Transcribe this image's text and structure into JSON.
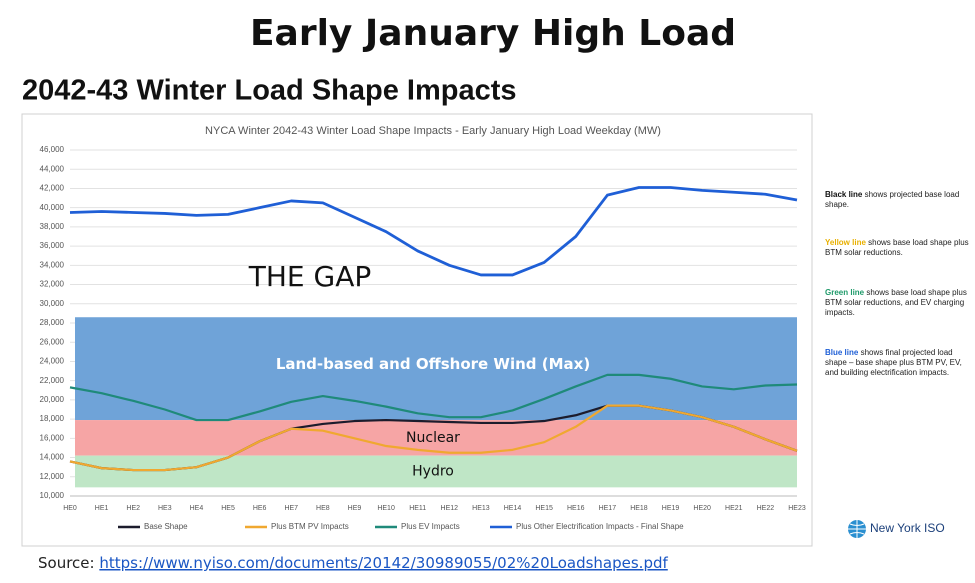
{
  "header": {
    "title": "Early January High Load",
    "subtitle": "2042-43 Winter Load Shape Impacts"
  },
  "chart_data": {
    "type": "line",
    "title": "NYCA Winter 2042-43 Winter Load Shape Impacts - Early January High Load Weekday (MW)",
    "categories": [
      "HE0",
      "HE1",
      "HE2",
      "HE3",
      "HE4",
      "HE5",
      "HE6",
      "HE7",
      "HE8",
      "HE9",
      "HE10",
      "HE11",
      "HE12",
      "HE13",
      "HE14",
      "HE15",
      "HE16",
      "HE17",
      "HE18",
      "HE19",
      "HE20",
      "HE21",
      "HE22",
      "HE23"
    ],
    "series": [
      {
        "name": "Base Shape",
        "color": "#1c1c2c",
        "values": [
          13600,
          12900,
          12700,
          12700,
          13000,
          14000,
          15700,
          17000,
          17500,
          17800,
          17900,
          17800,
          17700,
          17600,
          17600,
          17800,
          18400,
          19400,
          19400,
          18900,
          18200,
          17200,
          15900,
          14700
        ]
      },
      {
        "name": "Plus BTM PV Impacts",
        "color": "#f0a830",
        "values": [
          13600,
          12900,
          12700,
          12700,
          13000,
          14000,
          15700,
          17000,
          16800,
          16000,
          15200,
          14800,
          14500,
          14500,
          14800,
          15600,
          17200,
          19400,
          19400,
          18900,
          18200,
          17200,
          15900,
          14700
        ]
      },
      {
        "name": "Plus EV Impacts",
        "color": "#1f8a7a",
        "values": [
          21300,
          20700,
          19900,
          19000,
          17900,
          17900,
          18800,
          19800,
          20400,
          19900,
          19300,
          18600,
          18200,
          18200,
          18900,
          20100,
          21400,
          22600,
          22600,
          22200,
          21400,
          21100,
          21500,
          21600
        ]
      },
      {
        "name": "Plus Other Electrification Impacts - Final Shape",
        "color": "#1f5fd6",
        "values": [
          39500,
          39600,
          39500,
          39400,
          39200,
          39300,
          40000,
          40700,
          40500,
          39000,
          37500,
          35500,
          34000,
          33000,
          33000,
          34300,
          37000,
          41300,
          42100,
          42100,
          41800,
          41600,
          41400,
          40800
        ]
      }
    ],
    "bands": [
      {
        "label": "Land-based and Offshore Wind (Max)",
        "low": 17900,
        "high": 28600,
        "color": "#6fa3d8"
      },
      {
        "label": "Nuclear",
        "low": 14200,
        "high": 17900,
        "color": "#f6a5a5"
      },
      {
        "label": "Hydro",
        "low": 10900,
        "high": 14200,
        "color": "#bfe6c6"
      }
    ],
    "annotation": "THE GAP",
    "ylim": [
      10000,
      46000
    ],
    "yticks": [
      {
        "value": 10000,
        "label": "10,000"
      },
      {
        "value": 12000,
        "label": "12,000"
      },
      {
        "value": 14000,
        "label": "14,000"
      },
      {
        "value": 16000,
        "label": "16,000"
      },
      {
        "value": 18000,
        "label": "18,000"
      },
      {
        "value": 20000,
        "label": "20,000"
      },
      {
        "value": 22000,
        "label": "22,000"
      },
      {
        "value": 24000,
        "label": "24,000"
      },
      {
        "value": 26000,
        "label": "26,000"
      },
      {
        "value": 28000,
        "label": "28,000"
      },
      {
        "value": 30000,
        "label": "30,000"
      },
      {
        "value": 32000,
        "label": "32,000"
      },
      {
        "value": 34000,
        "label": "34,000"
      },
      {
        "value": 36000,
        "label": "36,000"
      },
      {
        "value": 38000,
        "label": "38,000"
      },
      {
        "value": 40000,
        "label": "40,000"
      },
      {
        "value": 42000,
        "label": "42,000"
      },
      {
        "value": 44000,
        "label": "44,000"
      },
      {
        "value": 46000,
        "label": "46,000"
      }
    ],
    "grid": true
  },
  "notes": [
    {
      "keyword": "Black line",
      "text": " shows projected base load shape.",
      "color": "#111111"
    },
    {
      "keyword": "Yellow line",
      "text": " shows base load shape plus BTM solar reductions.",
      "color": "#e8b000"
    },
    {
      "keyword": "Green line",
      "text": " shows base load shape plus BTM solar reductions, and EV charging impacts.",
      "color": "#1f9a6a"
    },
    {
      "keyword": "Blue line",
      "text": " shows final projected load shape – base shape plus BTM PV, EV, and building electrification impacts.",
      "color": "#1f5fd6"
    }
  ],
  "logo": "New York ISO",
  "source": {
    "label": "Source:",
    "url": "https://www.nyiso.com/documents/20142/30989055/02%20Loadshapes.pdf"
  }
}
